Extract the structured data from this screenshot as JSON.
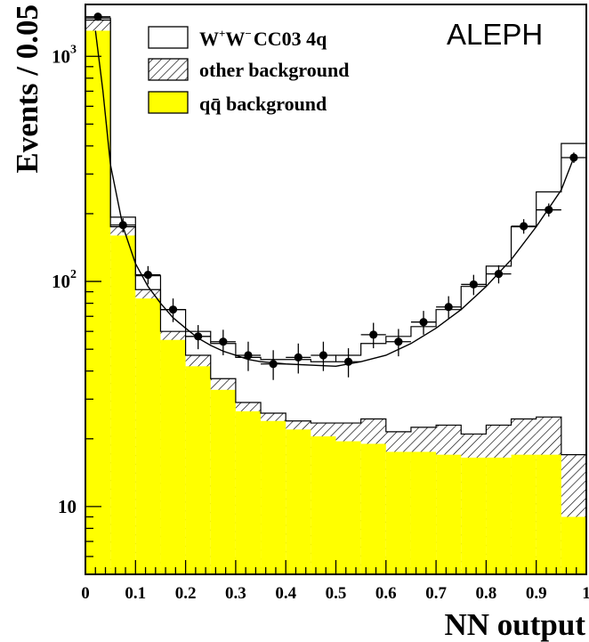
{
  "chart_data": {
    "type": "bar",
    "title": "ALEPH",
    "xlabel": "NN output",
    "ylabel": "Events / 0.05",
    "xlim": [
      0,
      1
    ],
    "ylim": [
      5,
      1700
    ],
    "yscale": "log",
    "x_ticks": [
      "0",
      "0.1",
      "0.2",
      "0.3",
      "0.4",
      "0.5",
      "0.6",
      "0.7",
      "0.8",
      "0.9",
      "1"
    ],
    "y_ticks": [
      {
        "value": 10,
        "base": "10",
        "exp": ""
      },
      {
        "value": 100,
        "base": "10",
        "exp": "2"
      },
      {
        "value": 1000,
        "base": "10",
        "exp": "3"
      }
    ],
    "bin_width": 0.05,
    "bin_lo": [
      0,
      0.05,
      0.1,
      0.15,
      0.2,
      0.25,
      0.3,
      0.35,
      0.4,
      0.45,
      0.5,
      0.55,
      0.6,
      0.65,
      0.7,
      0.75,
      0.8,
      0.85,
      0.9,
      0.95
    ],
    "legend": {
      "placement": "top",
      "entries": [
        {
          "key": "ww",
          "text": "W",
          "sup1": "+",
          "text2": "W",
          "sup2": "−",
          "text3": "CC03 4q"
        },
        {
          "key": "other",
          "text": "other background"
        },
        {
          "key": "qq",
          "text": "qq̄ background"
        }
      ]
    },
    "series": [
      {
        "key": "qq",
        "style": "filled",
        "color": "#ffff00",
        "values": [
          1300,
          160,
          84,
          55,
          42,
          33,
          26.5,
          24,
          22,
          20.5,
          19.5,
          19,
          17.5,
          17.5,
          17,
          16.5,
          16.5,
          17,
          17,
          9
        ]
      },
      {
        "key": "other",
        "style": "hatched",
        "values": [
          1450,
          175,
          92,
          60,
          47,
          37,
          29,
          26,
          24,
          23.5,
          23.5,
          24.5,
          21.5,
          22.5,
          23,
          21,
          23,
          24.5,
          25,
          17
        ]
      },
      {
        "key": "ww",
        "style": "outline",
        "values": [
          1480,
          193,
          106,
          75,
          60,
          53,
          46,
          45,
          45,
          44,
          47,
          53,
          57,
          63,
          75,
          95,
          117,
          175,
          250,
          410
        ]
      },
      {
        "key": "data",
        "style": "points",
        "values": [
          1500,
          178,
          107,
          75,
          57,
          54,
          47,
          43,
          46,
          47,
          44,
          58,
          54,
          66,
          77,
          97,
          108,
          176,
          208,
          355
        ],
        "errors": [
          30,
          13,
          10,
          9,
          7,
          7,
          7,
          6.5,
          7,
          7,
          6.5,
          7.5,
          7.5,
          8,
          9,
          10,
          10,
          13,
          14,
          19
        ]
      },
      {
        "key": "fit",
        "style": "curve",
        "x": [
          0.02,
          0.035,
          0.05,
          0.075,
          0.1,
          0.125,
          0.15,
          0.175,
          0.2,
          0.225,
          0.25,
          0.275,
          0.3,
          0.325,
          0.35,
          0.4,
          0.45,
          0.5,
          0.55,
          0.6,
          0.65,
          0.7,
          0.75,
          0.8,
          0.85,
          0.9,
          0.95,
          0.975
        ],
        "values": [
          1300,
          700,
          330,
          175,
          120,
          95,
          80,
          69,
          62,
          56,
          52,
          49,
          47,
          45,
          44,
          43,
          42.5,
          42,
          44,
          47,
          53,
          62,
          75,
          95,
          125,
          175,
          255,
          355
        ]
      }
    ]
  }
}
